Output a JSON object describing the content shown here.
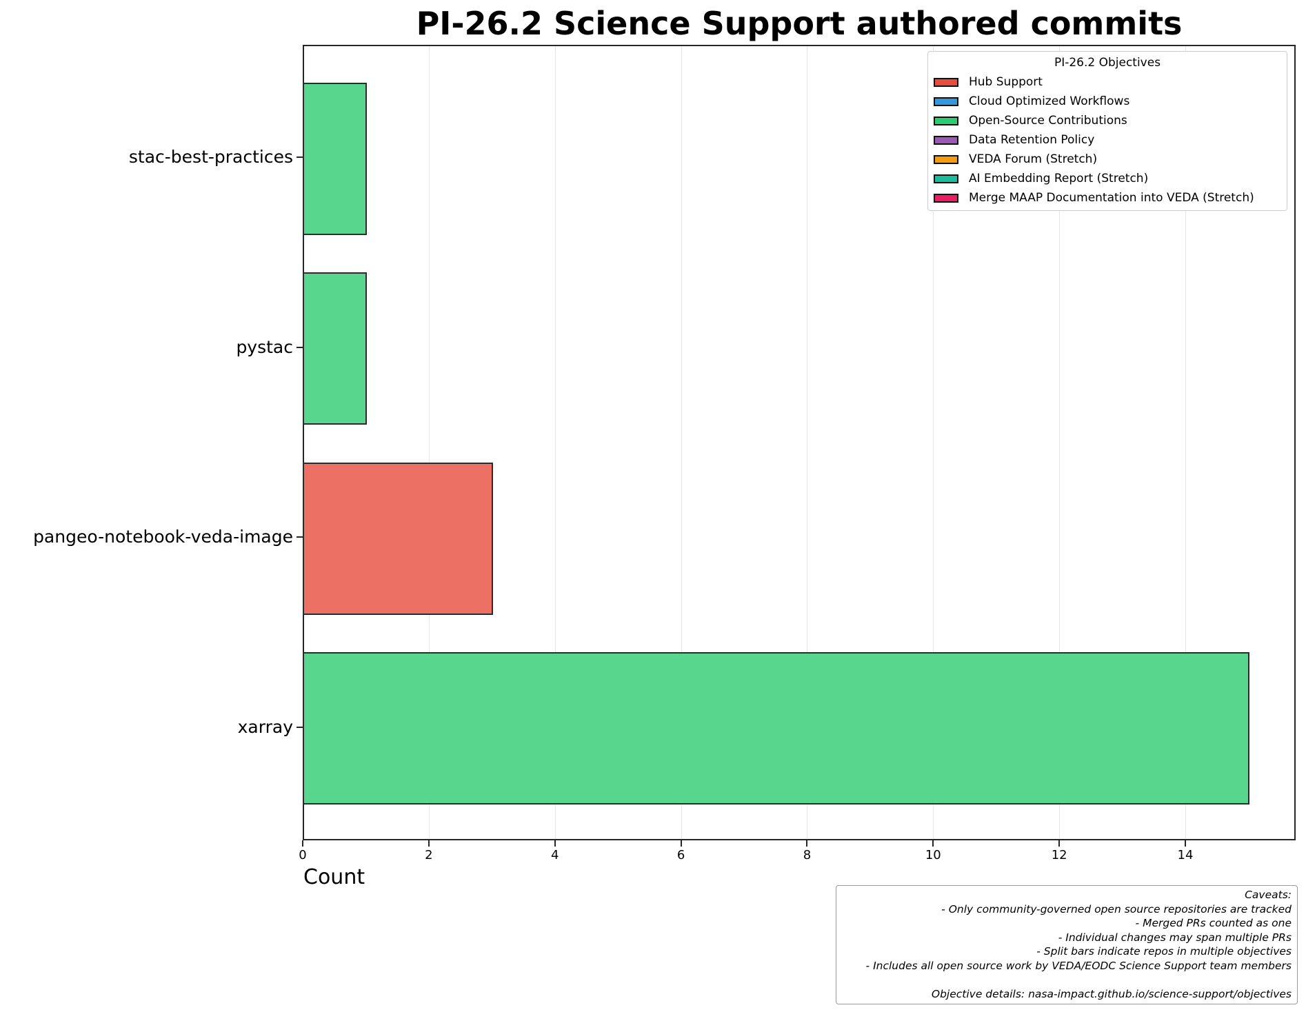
{
  "chart_data": {
    "type": "bar",
    "orientation": "horizontal",
    "title": "PI-26.2 Science Support authored commits",
    "xlabel": "Count",
    "ylabel": "",
    "xlim": [
      0,
      15.75
    ],
    "xticks": [
      0,
      2,
      4,
      6,
      8,
      10,
      12,
      14
    ],
    "grid": "x",
    "categories": [
      "stac-best-practices",
      "pystac",
      "pangeo-notebook-veda-image",
      "xarray"
    ],
    "values": [
      1,
      1,
      3,
      15
    ],
    "bar_objectives": [
      "Open-Source Contributions",
      "Open-Source Contributions",
      "Hub Support",
      "Open-Source Contributions"
    ],
    "bar_colors": [
      "#58d68d",
      "#58d68d",
      "#ec7063",
      "#58d68d"
    ],
    "legend": {
      "title": "PI-26.2 Objectives",
      "position": "upper right",
      "entries": [
        {
          "label": "Hub Support",
          "color": "#e74c3c"
        },
        {
          "label": "Cloud Optimized Workflows",
          "color": "#3498db"
        },
        {
          "label": "Open-Source Contributions",
          "color": "#2ecc71"
        },
        {
          "label": "Data Retention Policy",
          "color": "#9b59b6"
        },
        {
          "label": "VEDA Forum (Stretch)",
          "color": "#f39c12"
        },
        {
          "label": "AI Embedding Report (Stretch)",
          "color": "#1abc9c"
        },
        {
          "label": "Merge MAAP Documentation into VEDA (Stretch)",
          "color": "#e91e63"
        }
      ]
    },
    "annotation": {
      "title": "Caveats:",
      "lines": [
        "- Only community-governed open source repositories are tracked",
        "- Merged PRs counted as one",
        "- Individual changes may span multiple PRs",
        "- Split bars indicate repos in multiple objectives",
        "- Includes all open source work by VEDA/EODC Science Support team members"
      ],
      "footer": "Objective details: nasa-impact.github.io/science-support/objectives"
    }
  }
}
